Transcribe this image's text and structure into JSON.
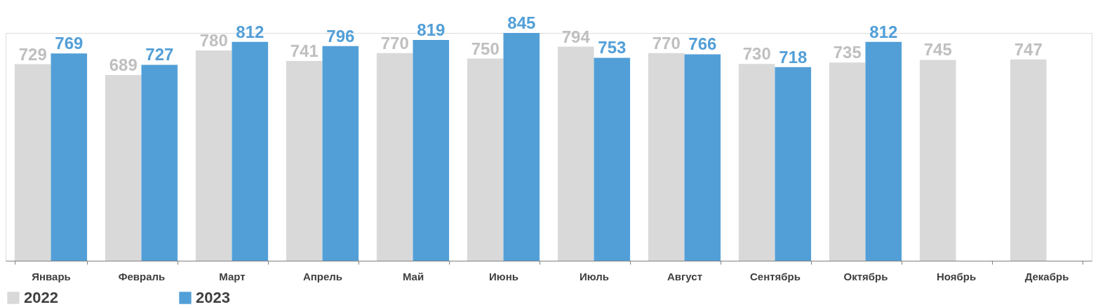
{
  "chart_data": {
    "type": "bar",
    "categories": [
      "Январь",
      "Февраль",
      "Март",
      "Апрель",
      "Май",
      "Июнь",
      "Июль",
      "Август",
      "Сентябрь",
      "Октябрь",
      "Ноябрь",
      "Декабрь"
    ],
    "series": [
      {
        "name": "2022",
        "color": "#d9d9d9",
        "values": [
          729,
          689,
          780,
          741,
          770,
          750,
          794,
          770,
          730,
          735,
          745,
          747
        ]
      },
      {
        "name": "2023",
        "color": "#529fd8",
        "values": [
          769,
          727,
          812,
          796,
          819,
          845,
          753,
          766,
          718,
          812,
          null,
          null
        ]
      }
    ],
    "data_labels": true,
    "legend": "bottom",
    "grid": false,
    "tick_labels": "x"
  }
}
